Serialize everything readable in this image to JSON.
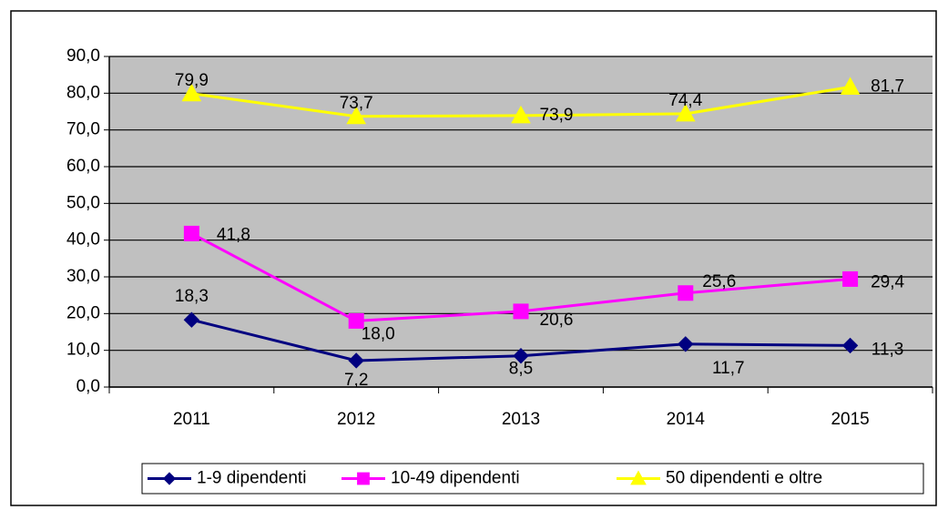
{
  "chart_data": {
    "type": "line",
    "categories": [
      "2011",
      "2012",
      "2013",
      "2014",
      "2015"
    ],
    "series": [
      {
        "name": "1-9 dipendenti",
        "color": "#000080",
        "marker": "diamond",
        "values": [
          18.3,
          7.2,
          8.5,
          11.7,
          11.3
        ],
        "value_labels": [
          "18,3",
          "7,2",
          "8,5",
          "11,7",
          "11,3"
        ]
      },
      {
        "name": "10-49 dipendenti",
        "color": "#ff00ff",
        "marker": "square",
        "values": [
          41.8,
          18.0,
          20.6,
          25.6,
          29.4
        ],
        "value_labels": [
          "41,8",
          "18,0",
          "20,6",
          "25,6",
          "29,4"
        ]
      },
      {
        "name": "50 dipendenti e oltre",
        "color": "#ffff00",
        "marker": "triangle",
        "values": [
          79.9,
          73.7,
          73.9,
          74.4,
          81.7
        ],
        "value_labels": [
          "79,9",
          "73,7",
          "73,9",
          "74,4",
          "81,7"
        ]
      }
    ],
    "ylim": [
      0,
      90
    ],
    "yticks": [
      {
        "value": 0,
        "label": "0,0"
      },
      {
        "value": 10,
        "label": "10,0"
      },
      {
        "value": 20,
        "label": "20,0"
      },
      {
        "value": 30,
        "label": "30,0"
      },
      {
        "value": 40,
        "label": "40,0"
      },
      {
        "value": 50,
        "label": "50,0"
      },
      {
        "value": 60,
        "label": "60,0"
      },
      {
        "value": 70,
        "label": "70,0"
      },
      {
        "value": 80,
        "label": "80,0"
      },
      {
        "value": 90,
        "label": "90,0"
      }
    ],
    "grid": true,
    "legend": "bottom",
    "plot_background": "#c0c0c0"
  }
}
